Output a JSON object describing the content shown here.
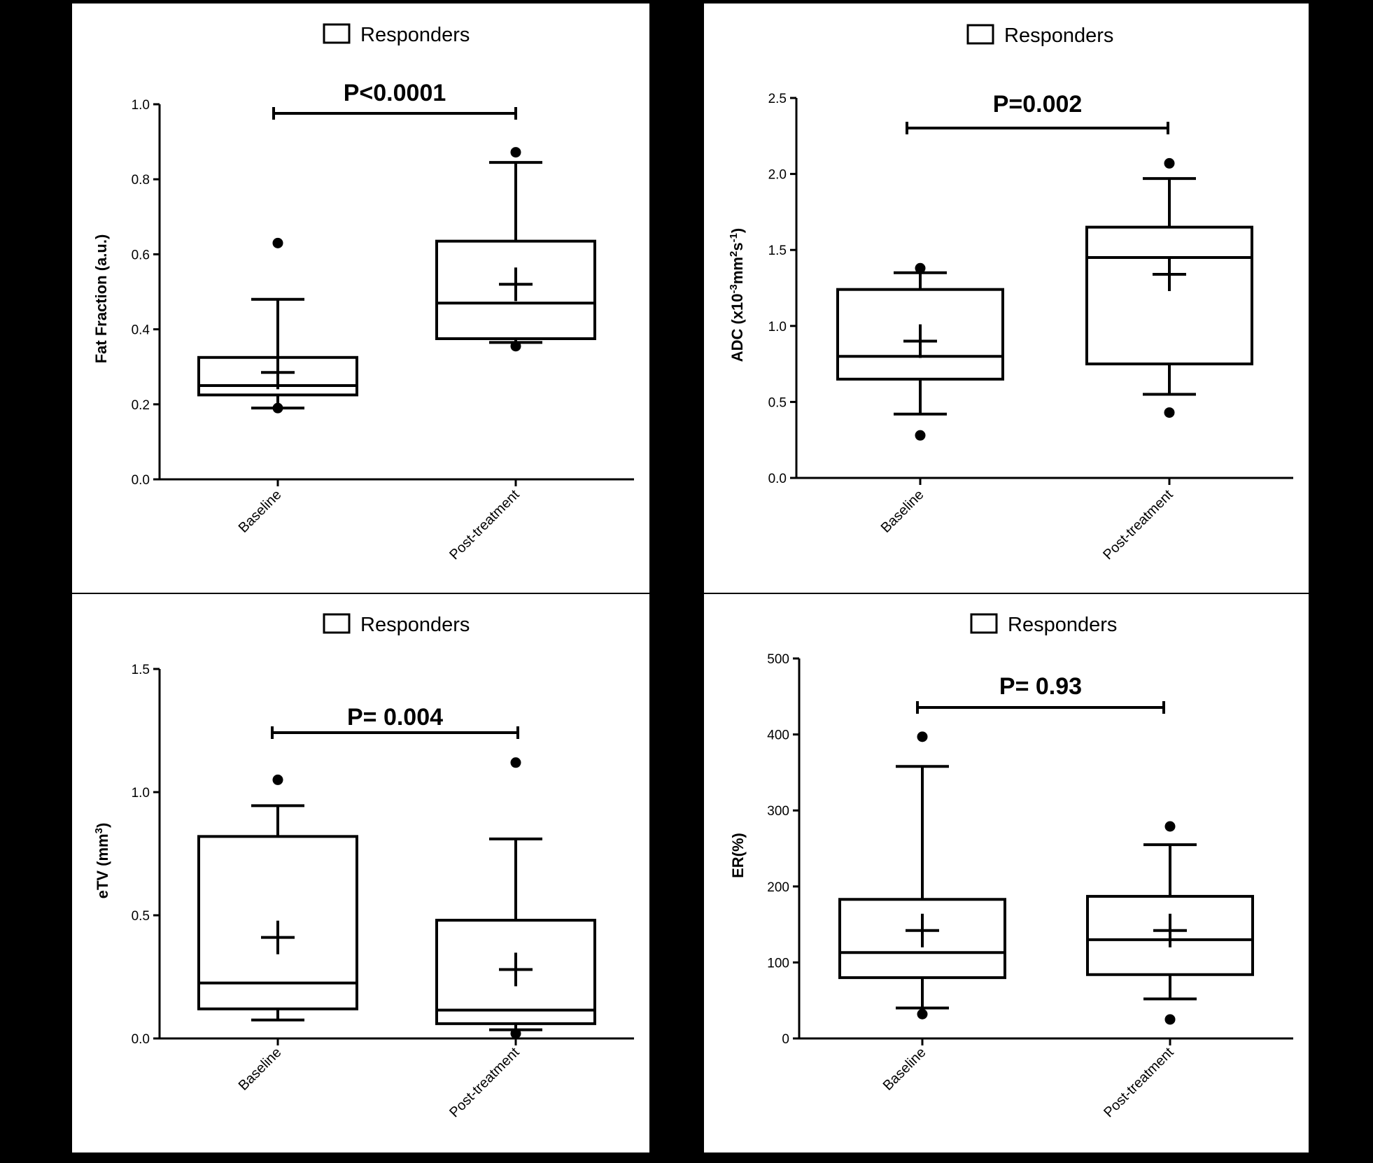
{
  "chart_data": [
    {
      "type": "box",
      "legend": "Responders",
      "ylabel": "Fat Fraction (a.u.)",
      "ylabel_parts": null,
      "ylim": [
        0,
        1.0
      ],
      "ticks": [
        0.0,
        0.2,
        0.4,
        0.6,
        0.8,
        1.0
      ],
      "tick_labels": [
        "0.0",
        "0.2",
        "0.4",
        "0.6",
        "0.8",
        "1.0"
      ],
      "p_value": "P<0.0001",
      "categories": [
        "Baseline",
        "Post-treatment"
      ],
      "boxes": [
        {
          "whisker_low": 0.19,
          "q1": 0.225,
          "median": 0.25,
          "q3": 0.325,
          "whisker_high": 0.48,
          "mean": 0.285,
          "outliers": [
            0.19,
            0.63
          ]
        },
        {
          "whisker_low": 0.365,
          "q1": 0.375,
          "median": 0.47,
          "q3": 0.635,
          "whisker_high": 0.845,
          "mean": 0.52,
          "outliers": [
            0.355,
            0.872
          ]
        }
      ]
    },
    {
      "type": "box",
      "legend": "Responders",
      "ylabel": "ADC (x10-3mm2s-1)",
      "ylabel_parts": {
        "base": "ADC (x10",
        "sup1": "-3",
        "mid": "mm",
        "sup2": "2",
        "mid2": "s",
        "sup3": "-1",
        "end": ")"
      },
      "ylim": [
        0,
        2.5
      ],
      "ticks": [
        0.0,
        0.5,
        1.0,
        1.5,
        2.0,
        2.5
      ],
      "tick_labels": [
        "0.0",
        "0.5",
        "1.0",
        "1.5",
        "2.0",
        "2.5"
      ],
      "p_value": "P=0.002",
      "categories": [
        "Baseline",
        "Post-treatment"
      ],
      "boxes": [
        {
          "whisker_low": 0.42,
          "q1": 0.65,
          "median": 0.8,
          "q3": 1.24,
          "whisker_high": 1.35,
          "mean": 0.9,
          "outliers": [
            0.28,
            1.38
          ]
        },
        {
          "whisker_low": 0.55,
          "q1": 0.75,
          "median": 1.45,
          "q3": 1.65,
          "whisker_high": 1.97,
          "mean": 1.34,
          "outliers": [
            0.43,
            2.07
          ]
        }
      ]
    },
    {
      "type": "box",
      "legend": "Responders",
      "ylabel": "eTV (mm3)",
      "ylabel_parts": {
        "base": "eTV (mm",
        "sup1": "3",
        "end": ")"
      },
      "ylim": [
        0,
        1.5
      ],
      "ticks": [
        0.0,
        0.5,
        1.0,
        1.5
      ],
      "tick_labels": [
        "0.0",
        "0.5",
        "1.0",
        "1.5"
      ],
      "p_value": "P= 0.004",
      "categories": [
        "Baseline",
        "Post-treatment"
      ],
      "boxes": [
        {
          "whisker_low": 0.075,
          "q1": 0.12,
          "median": 0.225,
          "q3": 0.82,
          "whisker_high": 0.945,
          "mean": 0.41,
          "outliers": [
            1.05
          ]
        },
        {
          "whisker_low": 0.035,
          "q1": 0.06,
          "median": 0.115,
          "q3": 0.48,
          "whisker_high": 0.81,
          "mean": 0.28,
          "outliers": [
            0.02,
            1.12
          ]
        }
      ]
    },
    {
      "type": "box",
      "legend": "Responders",
      "ylabel": "ER(%)",
      "ylabel_parts": null,
      "ylim": [
        0,
        500
      ],
      "ticks": [
        0,
        100,
        200,
        300,
        400,
        500
      ],
      "tick_labels": [
        "0",
        "100",
        "200",
        "300",
        "400",
        "500"
      ],
      "p_value": "P= 0.93",
      "categories": [
        "Baseline",
        "Post-treatment"
      ],
      "boxes": [
        {
          "whisker_low": 40,
          "q1": 80,
          "median": 113,
          "q3": 183,
          "whisker_high": 358,
          "mean": 142,
          "outliers": [
            32,
            397
          ]
        },
        {
          "whisker_low": 52,
          "q1": 84,
          "median": 130,
          "q3": 187,
          "whisker_high": 255,
          "mean": 142,
          "outliers": [
            25,
            279
          ]
        }
      ]
    }
  ]
}
